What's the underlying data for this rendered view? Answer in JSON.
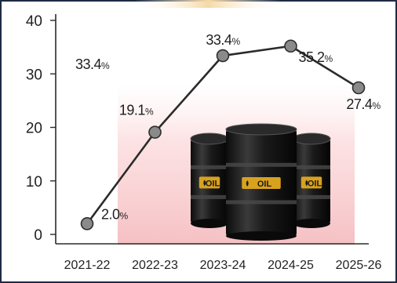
{
  "chart_data": {
    "type": "line",
    "title": "",
    "xlabel": "",
    "ylabel": "",
    "categories": [
      "2021-22",
      "2022-23",
      "2023-24",
      "2024-25",
      "2025-26"
    ],
    "series": [
      {
        "values": [
          2.0,
          19.1,
          33.4,
          35.2,
          27.4
        ]
      }
    ],
    "data_labels": [
      "2.0%",
      "19.1%",
      "33.4%",
      "35.2%",
      "27.4%"
    ],
    "annotation": "33.4%",
    "yticks": [
      "0",
      "10",
      "20",
      "30",
      "40"
    ],
    "ylim": [
      0,
      40
    ],
    "grid": false,
    "legend": "none"
  },
  "colors": {
    "line": "#2b2b2b",
    "marker": "#8a8a8a",
    "frame": "#1f2a44",
    "background_glow": "#f6c5c8",
    "top_bar": "#f6d9a6"
  },
  "decoration": {
    "illustration": "oil-barrels",
    "barrel_label": "OIL"
  }
}
